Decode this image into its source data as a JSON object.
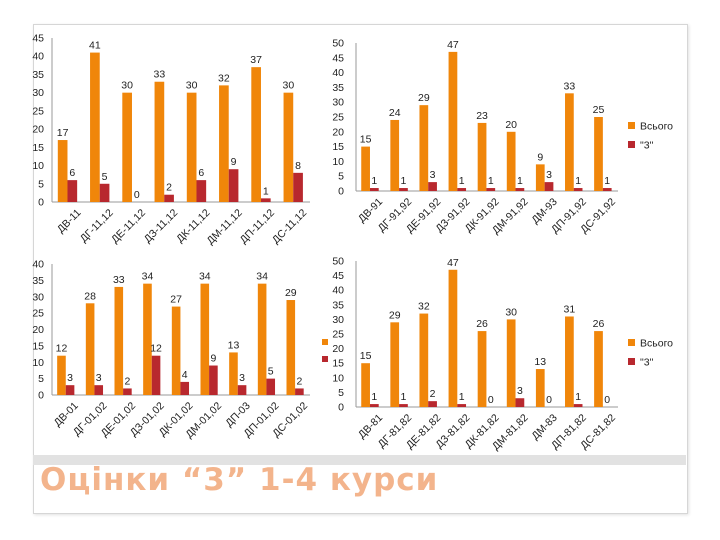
{
  "page": {
    "title": "Оцінки “3” 1-4 курси"
  },
  "colors": {
    "total": "#f0860a",
    "grade3": "#b8282e",
    "text": "#222222",
    "axis": "#9a9a9a",
    "title": "#f3b48c"
  },
  "chart_data": [
    {
      "type": "bar",
      "title": "",
      "categories": [
        "ДВ-11",
        "ДГ-11,12",
        "ДЕ-11,12",
        "ДЗ-11,12",
        "ДК-11,12",
        "ДМ-11,12",
        "ДП-11,12",
        "ДС-11,12"
      ],
      "series": [
        {
          "name": "",
          "values": [
            17,
            41,
            30,
            33,
            30,
            32,
            37,
            30
          ]
        },
        {
          "name": "",
          "values": [
            6,
            5,
            0,
            2,
            6,
            9,
            1,
            8
          ]
        }
      ],
      "ylim": [
        0,
        45
      ],
      "yticks": [
        0,
        5,
        10,
        15,
        20,
        25,
        30,
        35,
        40,
        45
      ],
      "grid": false,
      "legend": "none"
    },
    {
      "type": "bar",
      "title": "",
      "categories": [
        "ДВ-91",
        "ДГ-91,92",
        "ДЕ-91,92",
        "ДЗ-91,92",
        "ДК-91,92",
        "ДМ-91,92",
        "ДМ-93",
        "ДП-91,92",
        "ДС-91,92"
      ],
      "series": [
        {
          "name": "Всього",
          "values": [
            15,
            24,
            29,
            47,
            23,
            20,
            9,
            33,
            25
          ]
        },
        {
          "name": "\"3\"",
          "values": [
            1,
            1,
            3,
            1,
            1,
            1,
            3,
            1,
            1
          ]
        }
      ],
      "ylim": [
        0,
        50
      ],
      "yticks": [
        0,
        5,
        10,
        15,
        20,
        25,
        30,
        35,
        40,
        45,
        50
      ],
      "grid": false,
      "legend": "right"
    },
    {
      "type": "bar",
      "title": "",
      "categories": [
        "ДВ-01",
        "ДГ-01,02",
        "ДЕ-01,02",
        "ДЗ-01,02",
        "ДК-01,02",
        "ДМ-01,02",
        "ДП-03",
        "ДП-01,02",
        "ДС-01,02"
      ],
      "series": [
        {
          "name": "",
          "values": [
            12,
            28,
            33,
            34,
            27,
            34,
            13,
            34,
            29
          ]
        },
        {
          "name": "",
          "values": [
            3,
            3,
            2,
            12,
            4,
            9,
            3,
            5,
            2
          ]
        }
      ],
      "ylim": [
        0,
        40
      ],
      "yticks": [
        0,
        5,
        10,
        15,
        20,
        25,
        30,
        35,
        40
      ],
      "grid": false,
      "legend": "none"
    },
    {
      "type": "bar",
      "title": "",
      "categories": [
        "ДВ-81",
        "ДГ-81,82",
        "ДЕ-81,82",
        "ДЗ-81,82",
        "ДК-81,82",
        "ДМ-81,82",
        "ДМ-83",
        "ДП-81,82",
        "ДС-81,82"
      ],
      "series": [
        {
          "name": "Всього",
          "values": [
            15,
            29,
            32,
            47,
            26,
            30,
            13,
            31,
            26
          ]
        },
        {
          "name": "\"3\"",
          "values": [
            1,
            1,
            2,
            1,
            0,
            3,
            0,
            1,
            0
          ]
        }
      ],
      "ylim": [
        0,
        50
      ],
      "yticks": [
        0,
        5,
        10,
        15,
        20,
        25,
        30,
        35,
        40,
        45,
        50
      ],
      "grid": false,
      "legend": "right"
    }
  ]
}
